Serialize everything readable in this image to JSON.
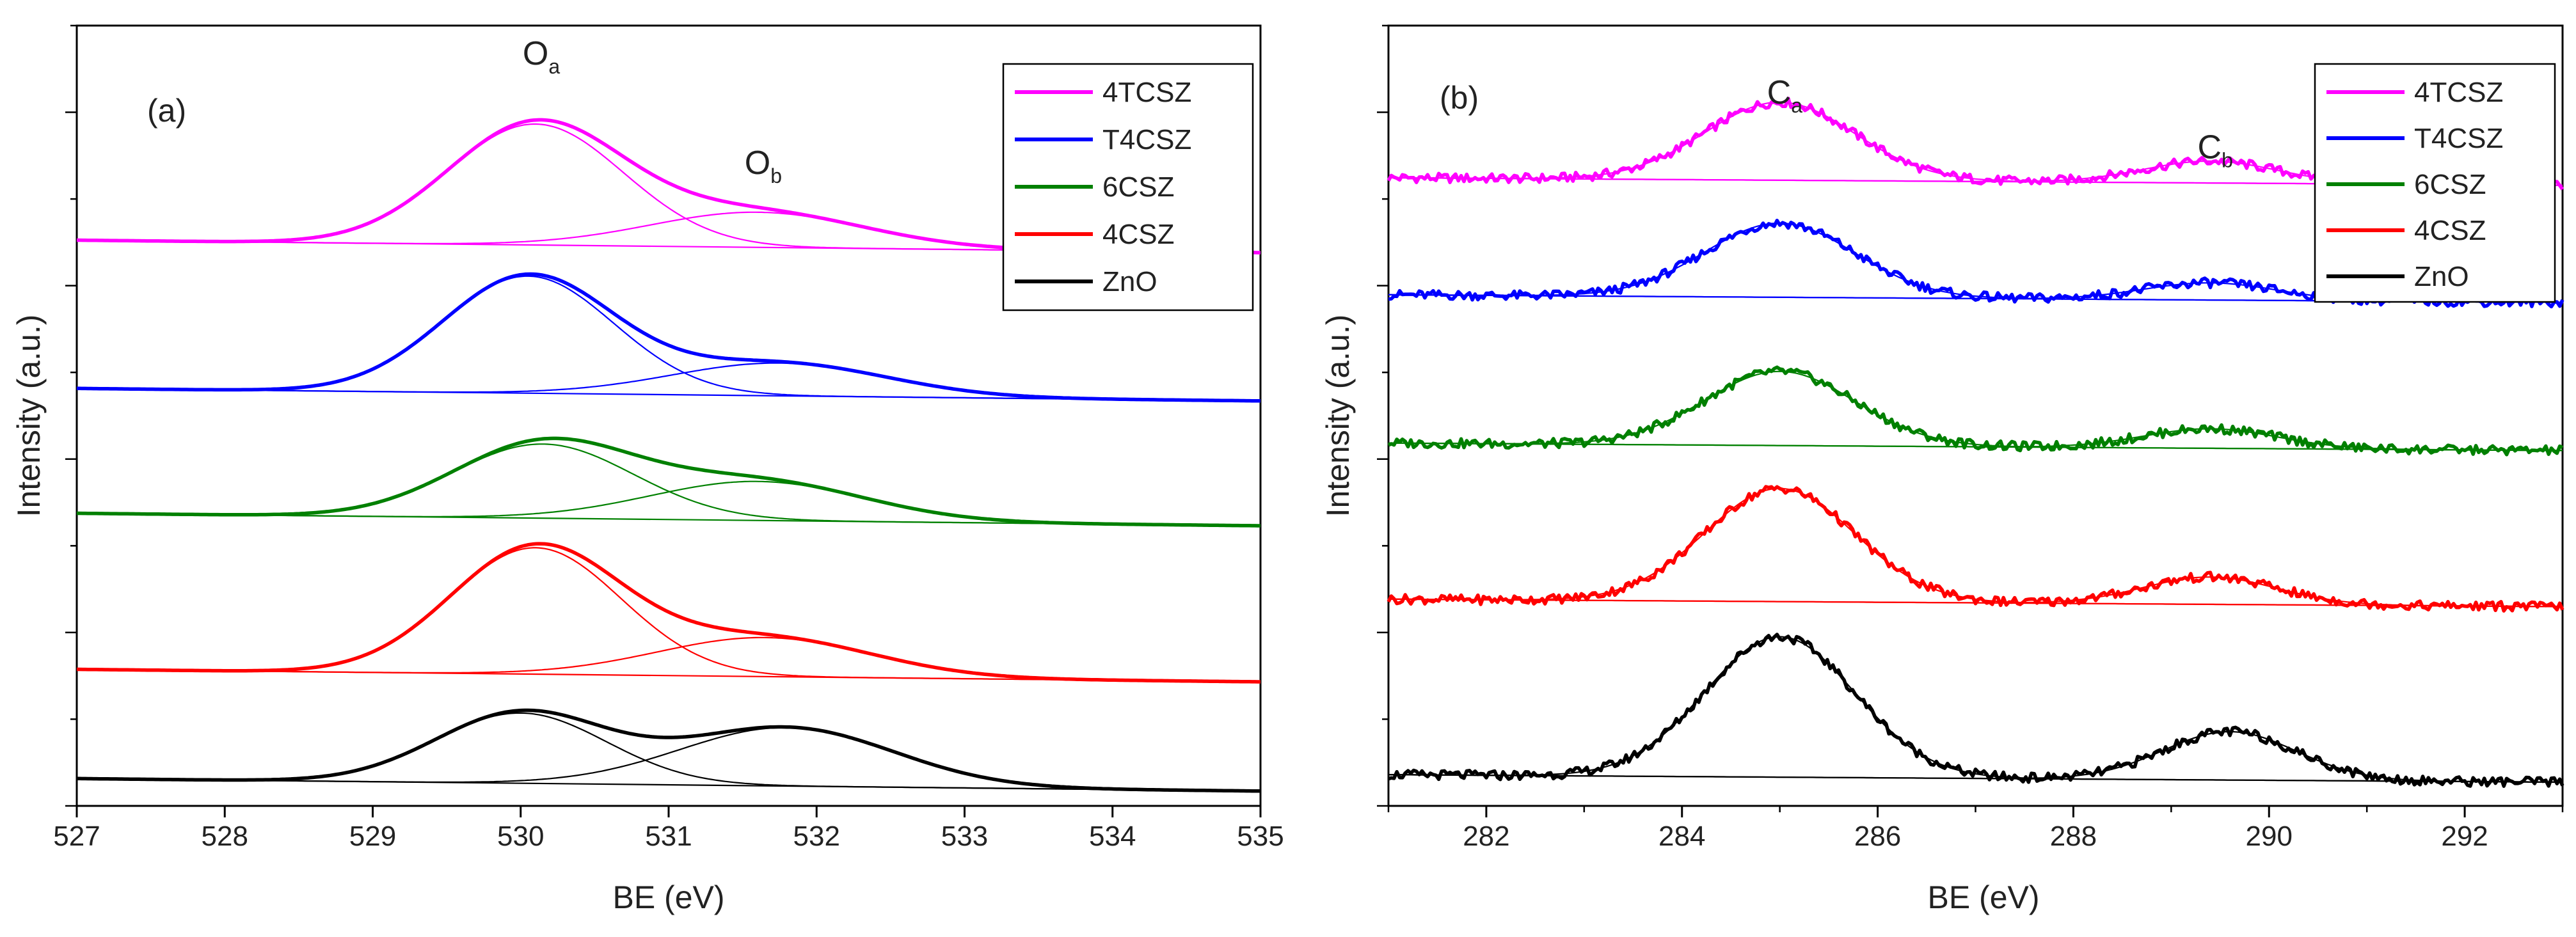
{
  "chart_data": [
    {
      "type": "line",
      "panel_label": "(a)",
      "xlabel": "BE (eV)",
      "ylabel": "Intensity (a.u.)",
      "xlim": [
        527,
        535
      ],
      "ylim": [
        0,
        10
      ],
      "xticks": [
        "527",
        "528",
        "529",
        "530",
        "531",
        "532",
        "533",
        "534",
        "535"
      ],
      "peak_annotations": [
        {
          "base": "O",
          "sub": "a",
          "x": 530.1,
          "y": 9.5
        },
        {
          "base": "O",
          "sub": "b",
          "x": 531.6,
          "y": 8.1
        }
      ],
      "legend": {
        "position": "top-right",
        "entries": [
          "4TCSZ",
          "T4CSZ",
          "6CSZ",
          "4CSZ",
          "ZnO"
        ]
      },
      "series": [
        {
          "name": "4TCSZ",
          "color": "#ff00ff",
          "baseline": 7.25,
          "peaks": [
            {
              "center": 530.1,
              "height": 1.55,
              "width": 0.7
            },
            {
              "center": 531.6,
              "height": 0.45,
              "width": 0.85
            }
          ]
        },
        {
          "name": "T4CSZ",
          "color": "#0000ff",
          "baseline": 5.35,
          "peaks": [
            {
              "center": 530.05,
              "height": 1.5,
              "width": 0.68
            },
            {
              "center": 531.75,
              "height": 0.42,
              "width": 0.85
            }
          ]
        },
        {
          "name": "6CSZ",
          "color": "#008000",
          "baseline": 3.75,
          "peaks": [
            {
              "center": 530.15,
              "height": 0.95,
              "width": 0.72
            },
            {
              "center": 531.6,
              "height": 0.5,
              "width": 0.85
            }
          ]
        },
        {
          "name": "4CSZ",
          "color": "#ff0000",
          "baseline": 1.75,
          "peaks": [
            {
              "center": 530.1,
              "height": 1.62,
              "width": 0.68
            },
            {
              "center": 531.65,
              "height": 0.5,
              "width": 0.85
            }
          ]
        },
        {
          "name": "ZnO",
          "color": "#000000",
          "baseline": 0.35,
          "peaks": [
            {
              "center": 530.0,
              "height": 0.9,
              "width": 0.68
            },
            {
              "center": 531.8,
              "height": 0.75,
              "width": 0.85
            }
          ]
        }
      ]
    },
    {
      "type": "line",
      "panel_label": "(b)",
      "xlabel": "BE (eV)",
      "ylabel": "Intensity (a.u.)",
      "xlim": [
        281,
        293
      ],
      "ylim": [
        0,
        10
      ],
      "xticks": [
        "282",
        "284",
        "286",
        "288",
        "290",
        "292"
      ],
      "peak_annotations": [
        {
          "base": "C",
          "sub": "a",
          "x": 285.0,
          "y": 9.0
        },
        {
          "base": "C",
          "sub": "b",
          "x": 289.4,
          "y": 8.3
        }
      ],
      "legend": {
        "position": "top-right",
        "entries": [
          "4TCSZ",
          "T4CSZ",
          "6CSZ",
          "4CSZ",
          "ZnO"
        ]
      },
      "series": [
        {
          "name": "4TCSZ",
          "color": "#ff00ff",
          "baseline": 8.05,
          "peaks": [
            {
              "center": 285.0,
              "height": 1.0,
              "width": 0.9
            },
            {
              "center": 289.4,
              "height": 0.28,
              "width": 0.8
            }
          ]
        },
        {
          "name": "T4CSZ",
          "color": "#0000ff",
          "baseline": 6.55,
          "peaks": [
            {
              "center": 285.0,
              "height": 0.95,
              "width": 0.9
            },
            {
              "center": 289.4,
              "height": 0.22,
              "width": 0.8
            }
          ]
        },
        {
          "name": "6CSZ",
          "color": "#008000",
          "baseline": 4.65,
          "peaks": [
            {
              "center": 285.0,
              "height": 0.95,
              "width": 0.9
            },
            {
              "center": 289.4,
              "height": 0.25,
              "width": 0.8
            }
          ]
        },
        {
          "name": "4CSZ",
          "color": "#ff0000",
          "baseline": 2.65,
          "peaks": [
            {
              "center": 285.0,
              "height": 1.45,
              "width": 0.9
            },
            {
              "center": 289.4,
              "height": 0.35,
              "width": 0.8
            }
          ]
        },
        {
          "name": "ZnO",
          "color": "#000000",
          "baseline": 0.4,
          "peaks": [
            {
              "center": 285.0,
              "height": 1.8,
              "width": 0.9
            },
            {
              "center": 289.6,
              "height": 0.62,
              "width": 0.8
            }
          ]
        }
      ]
    }
  ]
}
